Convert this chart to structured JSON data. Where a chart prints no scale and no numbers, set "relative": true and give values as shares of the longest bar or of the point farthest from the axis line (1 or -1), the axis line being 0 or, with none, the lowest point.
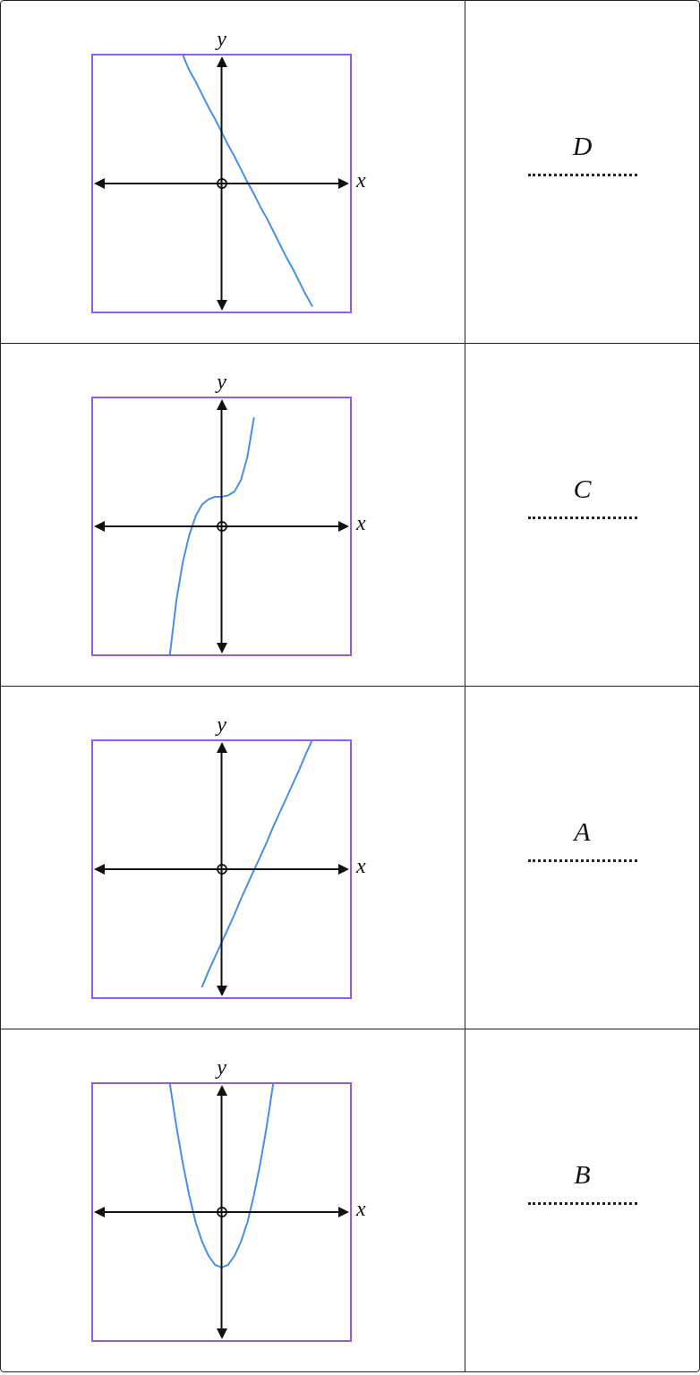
{
  "chart_data": [
    {
      "type": "line",
      "relative": true,
      "xlabel": "x",
      "ylabel": "y",
      "annotations": [
        "D"
      ],
      "categories": [
        null,
        null,
        null,
        null,
        null,
        null,
        null,
        null,
        null,
        null,
        null,
        null,
        null,
        null,
        null,
        null,
        null,
        null,
        null,
        null,
        null,
        null,
        null,
        null,
        null,
        null,
        null,
        null,
        null,
        null,
        null,
        null,
        null,
        null,
        null,
        null,
        null,
        null,
        null,
        null,
        null
      ],
      "series": [
        {
          "color": "#4a90e2",
          "values": [
            null,
            null,
            null,
            null,
            null,
            null,
            null,
            null,
            null,
            null,
            null,
            null,
            null,
            null,
            1,
            0.88,
            0.79,
            0.69,
            0.59,
            0.5,
            0.4,
            0.3,
            0.21,
            0.11,
            0.01,
            -0.08,
            -0.18,
            -0.27,
            -0.37,
            -0.47,
            -0.57,
            -0.66,
            -0.76,
            -0.86,
            -0.95,
            null,
            null,
            null,
            null,
            null,
            null
          ]
        }
      ]
    },
    {
      "type": "line",
      "relative": true,
      "xlabel": "x",
      "ylabel": "y",
      "annotations": [
        "C"
      ],
      "categories": [
        null,
        null,
        null,
        null,
        null,
        null,
        null,
        null,
        null,
        null,
        null,
        null,
        null,
        null,
        null,
        null,
        null,
        null,
        null,
        null,
        null,
        null,
        null,
        null,
        null,
        null,
        null,
        null,
        null,
        null,
        null,
        null,
        null,
        null,
        null,
        null,
        null,
        null,
        null,
        null,
        null
      ],
      "series": [
        {
          "color": "#4a90e2",
          "values": [
            null,
            null,
            null,
            null,
            null,
            null,
            null,
            null,
            null,
            null,
            null,
            null,
            -1,
            -0.58,
            -0.28,
            -0.07,
            0.08,
            0.17,
            0.21,
            0.23,
            0.23,
            0.24,
            0.27,
            0.36,
            0.54,
            0.84,
            null,
            null,
            null,
            null,
            null,
            null,
            null,
            null,
            null,
            null,
            null,
            null,
            null,
            null,
            null
          ]
        }
      ]
    },
    {
      "type": "line",
      "relative": true,
      "xlabel": "x",
      "ylabel": "y",
      "annotations": [
        "A"
      ],
      "categories": [
        null,
        null,
        null,
        null,
        null,
        null,
        null,
        null,
        null,
        null,
        null,
        null,
        null,
        null,
        null,
        null,
        null,
        null,
        null,
        null,
        null,
        null,
        null,
        null,
        null,
        null,
        null,
        null,
        null,
        null,
        null,
        null,
        null,
        null,
        null,
        null,
        null,
        null,
        null,
        null,
        null
      ],
      "series": [
        {
          "color": "#4a90e2",
          "values": [
            null,
            null,
            null,
            null,
            null,
            null,
            null,
            null,
            null,
            null,
            null,
            null,
            null,
            null,
            null,
            null,
            null,
            -0.91,
            -0.79,
            -0.68,
            -0.57,
            -0.46,
            -0.35,
            -0.23,
            -0.12,
            -0.01,
            0.1,
            0.21,
            0.33,
            0.44,
            0.55,
            0.66,
            0.77,
            0.89,
            1,
            null,
            null,
            null,
            null,
            null,
            null
          ]
        }
      ]
    },
    {
      "type": "line",
      "relative": true,
      "xlabel": "x",
      "ylabel": "y",
      "annotations": [
        "B"
      ],
      "categories": [
        null,
        null,
        null,
        null,
        null,
        null,
        null,
        null,
        null,
        null,
        null,
        null,
        null,
        null,
        null,
        null,
        null,
        null,
        null,
        null,
        null,
        null,
        null,
        null,
        null,
        null,
        null,
        null,
        null,
        null,
        null,
        null,
        null,
        null,
        null,
        null,
        null,
        null,
        null,
        null,
        null
      ],
      "series": [
        {
          "color": "#4a90e2",
          "values": [
            null,
            null,
            null,
            null,
            null,
            null,
            null,
            null,
            null,
            null,
            null,
            null,
            1,
            0.67,
            0.38,
            0.13,
            -0.08,
            -0.23,
            -0.34,
            -0.41,
            -0.43,
            -0.41,
            -0.34,
            -0.23,
            -0.08,
            0.13,
            0.38,
            0.67,
            1,
            null,
            null,
            null,
            null,
            null,
            null,
            null,
            null,
            null,
            null,
            null,
            null
          ]
        }
      ]
    }
  ]
}
